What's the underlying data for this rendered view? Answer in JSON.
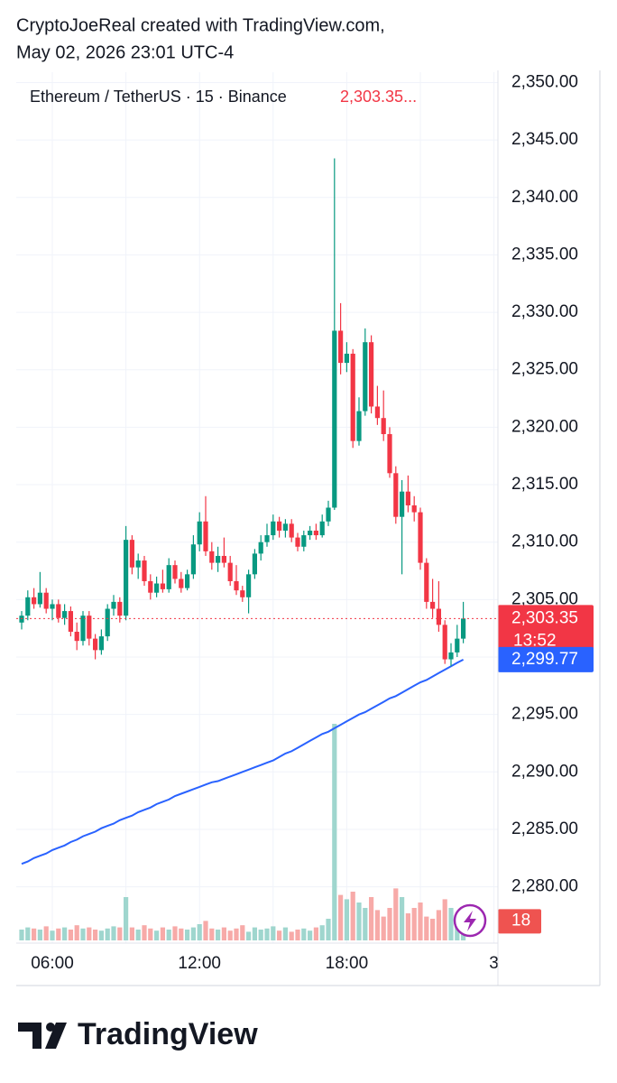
{
  "header": {
    "line1": "CryptoJoeReal created with TradingView.com,",
    "line2": "May 02, 2026 23:01 UTC-4"
  },
  "chart_data": {
    "type": "candlestick",
    "title": "Ethereum / TetherUS · 15 · Binance",
    "title_price": "2,303.35...",
    "categories": [
      null,
      null,
      null,
      null,
      null,
      "06:00",
      null,
      null,
      null,
      null,
      null,
      null,
      null,
      null,
      null,
      null,
      null,
      null,
      null,
      null,
      null,
      null,
      null,
      null,
      null,
      null,
      null,
      null,
      null,
      "12:00",
      null,
      null,
      null,
      null,
      null,
      null,
      null,
      null,
      null,
      null,
      null,
      null,
      null,
      null,
      null,
      null,
      null,
      null,
      null,
      null,
      null,
      null,
      null,
      "18:00",
      null,
      null,
      null,
      null,
      null,
      null,
      null,
      null,
      null,
      null,
      null,
      null,
      null,
      null,
      null,
      null,
      null,
      null,
      null,
      null,
      null,
      null,
      null,
      "3"
    ],
    "open": [
      2303.0,
      2303.6,
      2305.2,
      2304.6,
      2305.6,
      2304.2,
      2304.6,
      2303.4,
      2304.0,
      2302.2,
      2301.4,
      2303.6,
      2301.6,
      2300.6,
      2301.8,
      2304.2,
      2304.8,
      2303.6,
      2310.2,
      2307.8,
      2308.4,
      2306.6,
      2305.6,
      2306.4,
      2305.9,
      2308.0,
      2306.8,
      2306.0,
      2307.2,
      2309.8,
      2311.8,
      2309.2,
      2308.2,
      2308.8,
      2308.2,
      2306.6,
      2305.8,
      2305.2,
      2307.2,
      2309.0,
      2310.0,
      2310.6,
      2311.8,
      2311.0,
      2311.6,
      2310.4,
      2309.6,
      2310.6,
      2311.0,
      2310.6,
      2311.8,
      2313.0,
      2328.4,
      2325.6,
      2326.4,
      2318.8,
      2321.4,
      2327.4,
      2321.8,
      2320.8,
      2319.4,
      2316.0,
      2312.2,
      2314.4,
      2313.2,
      2312.6,
      2308.2,
      2304.8,
      2304.2,
      2302.8,
      2299.8,
      2300.4,
      2301.6,
      null,
      null,
      null,
      null,
      null
    ],
    "high": [
      2304.0,
      2305.8,
      2306.0,
      2307.4,
      2306.0,
      2305.0,
      2305.0,
      2304.6,
      2304.4,
      2303.0,
      2304.0,
      2304.0,
      2302.0,
      2302.4,
      2304.6,
      2305.4,
      2305.2,
      2311.4,
      2310.6,
      2309.0,
      2308.8,
      2307.2,
      2307.0,
      2307.6,
      2308.6,
      2308.4,
      2307.4,
      2307.6,
      2310.6,
      2312.6,
      2314.0,
      2310.0,
      2309.6,
      2310.4,
      2308.8,
      2308.0,
      2306.2,
      2307.6,
      2309.4,
      2310.6,
      2311.6,
      2312.4,
      2312.2,
      2312.0,
      2312.0,
      2310.8,
      2311.0,
      2311.4,
      2311.6,
      2312.4,
      2313.6,
      2343.4,
      2330.8,
      2327.4,
      2326.8,
      2322.6,
      2328.6,
      2328.0,
      2323.6,
      2323.2,
      2320.0,
      2316.6,
      2315.4,
      2315.8,
      2314.0,
      2313.0,
      2308.6,
      2306.8,
      2306.6,
      2303.2,
      2301.2,
      2302.8,
      2304.8,
      null,
      null,
      null,
      null,
      null
    ],
    "low": [
      2302.4,
      2303.2,
      2304.2,
      2304.3,
      2303.8,
      2303.2,
      2303.0,
      2302.8,
      2301.8,
      2300.6,
      2301.0,
      2301.0,
      2299.8,
      2300.2,
      2301.4,
      2303.6,
      2303.0,
      2303.2,
      2307.2,
      2306.8,
      2306.2,
      2305.0,
      2305.2,
      2305.6,
      2305.6,
      2306.4,
      2305.6,
      2305.8,
      2306.8,
      2309.2,
      2308.8,
      2307.6,
      2307.4,
      2307.8,
      2306.2,
      2305.4,
      2304.8,
      2303.8,
      2306.8,
      2308.4,
      2309.6,
      2310.2,
      2310.4,
      2310.4,
      2310.0,
      2309.2,
      2309.2,
      2310.2,
      2310.2,
      2310.4,
      2311.4,
      2312.8,
      2324.6,
      2324.8,
      2318.2,
      2318.4,
      2321.0,
      2321.2,
      2320.2,
      2318.8,
      2315.6,
      2311.6,
      2307.2,
      2312.6,
      2311.8,
      2307.6,
      2304.2,
      2303.4,
      2302.2,
      2299.4,
      2299.2,
      2300.0,
      2301.2,
      null,
      null,
      null,
      null,
      null
    ],
    "close": [
      2303.6,
      2305.2,
      2304.6,
      2305.6,
      2304.2,
      2304.6,
      2303.4,
      2304.0,
      2302.2,
      2301.4,
      2303.6,
      2301.6,
      2300.6,
      2301.8,
      2304.2,
      2304.8,
      2303.6,
      2310.2,
      2307.8,
      2308.4,
      2306.6,
      2305.6,
      2306.4,
      2305.9,
      2308.0,
      2306.8,
      2306.0,
      2307.2,
      2309.8,
      2311.8,
      2309.2,
      2308.2,
      2308.8,
      2308.2,
      2306.6,
      2305.8,
      2305.2,
      2307.2,
      2309.0,
      2310.0,
      2310.6,
      2311.8,
      2311.0,
      2311.6,
      2310.4,
      2309.6,
      2310.6,
      2311.0,
      2310.6,
      2311.8,
      2313.0,
      2328.4,
      2325.6,
      2326.4,
      2318.8,
      2321.4,
      2327.4,
      2321.8,
      2320.8,
      2319.4,
      2316.0,
      2312.2,
      2314.4,
      2313.2,
      2312.6,
      2308.2,
      2304.8,
      2304.2,
      2302.8,
      2299.8,
      2300.4,
      2301.6,
      2303.35,
      null,
      null,
      null,
      null,
      null
    ],
    "volume": [
      10,
      12,
      11,
      10,
      13,
      9,
      11,
      12,
      10,
      14,
      11,
      12,
      10,
      9,
      11,
      13,
      12,
      40,
      12,
      10,
      14,
      11,
      9,
      12,
      10,
      13,
      11,
      10,
      12,
      15,
      18,
      11,
      10,
      12,
      9,
      11,
      14,
      8,
      12,
      10,
      11,
      13,
      9,
      12,
      8,
      10,
      11,
      9,
      12,
      14,
      20,
      200,
      42,
      38,
      45,
      35,
      30,
      40,
      28,
      22,
      30,
      48,
      40,
      25,
      30,
      35,
      22,
      20,
      28,
      38,
      30,
      22,
      18,
      null,
      null,
      null,
      null,
      null
    ],
    "ma": {
      "color": "#2962ff",
      "label": "2,299.77",
      "values": [
        2282.0,
        2282.2,
        2282.5,
        2282.7,
        2282.9,
        2283.2,
        2283.4,
        2283.6,
        2283.9,
        2284.1,
        2284.4,
        2284.6,
        2284.8,
        2285.1,
        2285.3,
        2285.5,
        2285.8,
        2286.0,
        2286.2,
        2286.5,
        2286.7,
        2286.9,
        2287.2,
        2287.4,
        2287.6,
        2287.9,
        2288.1,
        2288.3,
        2288.5,
        2288.7,
        2288.9,
        2289.1,
        2289.2,
        2289.4,
        2289.6,
        2289.8,
        2290.0,
        2290.2,
        2290.4,
        2290.6,
        2290.8,
        2291.0,
        2291.3,
        2291.6,
        2291.8,
        2292.1,
        2292.4,
        2292.7,
        2293.0,
        2293.3,
        2293.5,
        2293.8,
        2294.1,
        2294.4,
        2294.7,
        2295.0,
        2295.2,
        2295.5,
        2295.8,
        2296.1,
        2296.4,
        2296.6,
        2296.9,
        2297.2,
        2297.5,
        2297.8,
        2298.0,
        2298.3,
        2298.6,
        2298.9,
        2299.2,
        2299.5,
        2299.77,
        null,
        null,
        null,
        null,
        null
      ]
    },
    "last_price": {
      "value": 2303.35,
      "label": "2,303.35"
    },
    "countdown": "13:52",
    "up_color": "#089981",
    "down_color": "#f23645",
    "volume_up_color": "#9fd6ce",
    "volume_down_color": "#f7aaa8",
    "ylim": [
      2275.1,
      2350.9
    ],
    "yticks": [
      {
        "value": 2280,
        "label": "2,280.00"
      },
      {
        "value": 2285,
        "label": "2,285.00"
      },
      {
        "value": 2290,
        "label": "2,290.00"
      },
      {
        "value": 2295,
        "label": "2,295.00"
      },
      {
        "value": 2300,
        "label": "2,300.00"
      },
      {
        "value": 2305,
        "label": "2,305.00"
      },
      {
        "value": 2310,
        "label": "2,310.00"
      },
      {
        "value": 2315,
        "label": "2,315.00"
      },
      {
        "value": 2320,
        "label": "2,320.00"
      },
      {
        "value": 2325,
        "label": "2,325.00"
      },
      {
        "value": 2330,
        "label": "2,330.00"
      },
      {
        "value": 2335,
        "label": "2,335.00"
      },
      {
        "value": 2340,
        "label": "2,340.00"
      },
      {
        "value": 2345,
        "label": "2,345.00"
      },
      {
        "value": 2350,
        "label": "2,350.00"
      }
    ],
    "grid": true
  },
  "footer": {
    "brand": "TradingView"
  }
}
